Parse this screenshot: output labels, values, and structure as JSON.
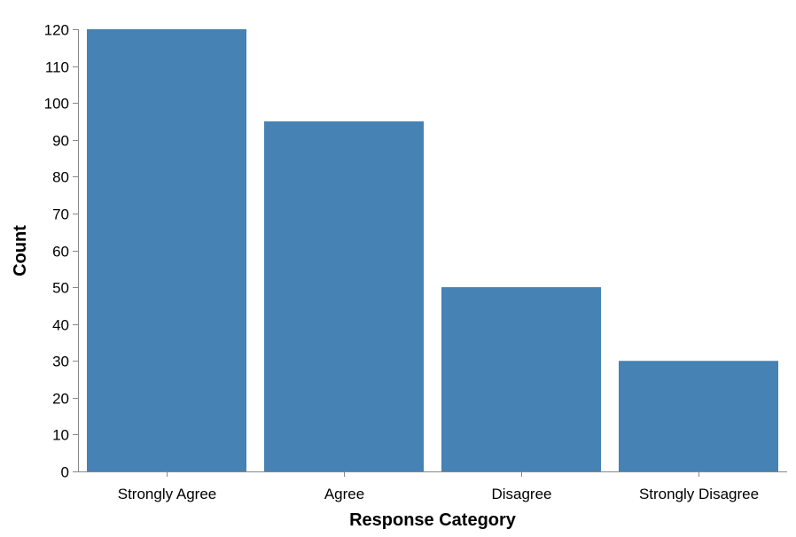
{
  "chart_data": {
    "type": "bar",
    "title": "",
    "xlabel": "Response Category",
    "ylabel": "Count",
    "categories": [
      "Strongly Agree",
      "Agree",
      "Disagree",
      "Strongly Disagree"
    ],
    "values": [
      120,
      95,
      50,
      30
    ],
    "ylim": [
      0,
      120
    ],
    "yticks": [
      0,
      10,
      20,
      30,
      40,
      50,
      60,
      70,
      80,
      90,
      100,
      110,
      120
    ],
    "grid": false,
    "legend": "none",
    "colors": {
      "bar": "#4682b4",
      "axis": "#888888",
      "text": "#000000"
    }
  }
}
